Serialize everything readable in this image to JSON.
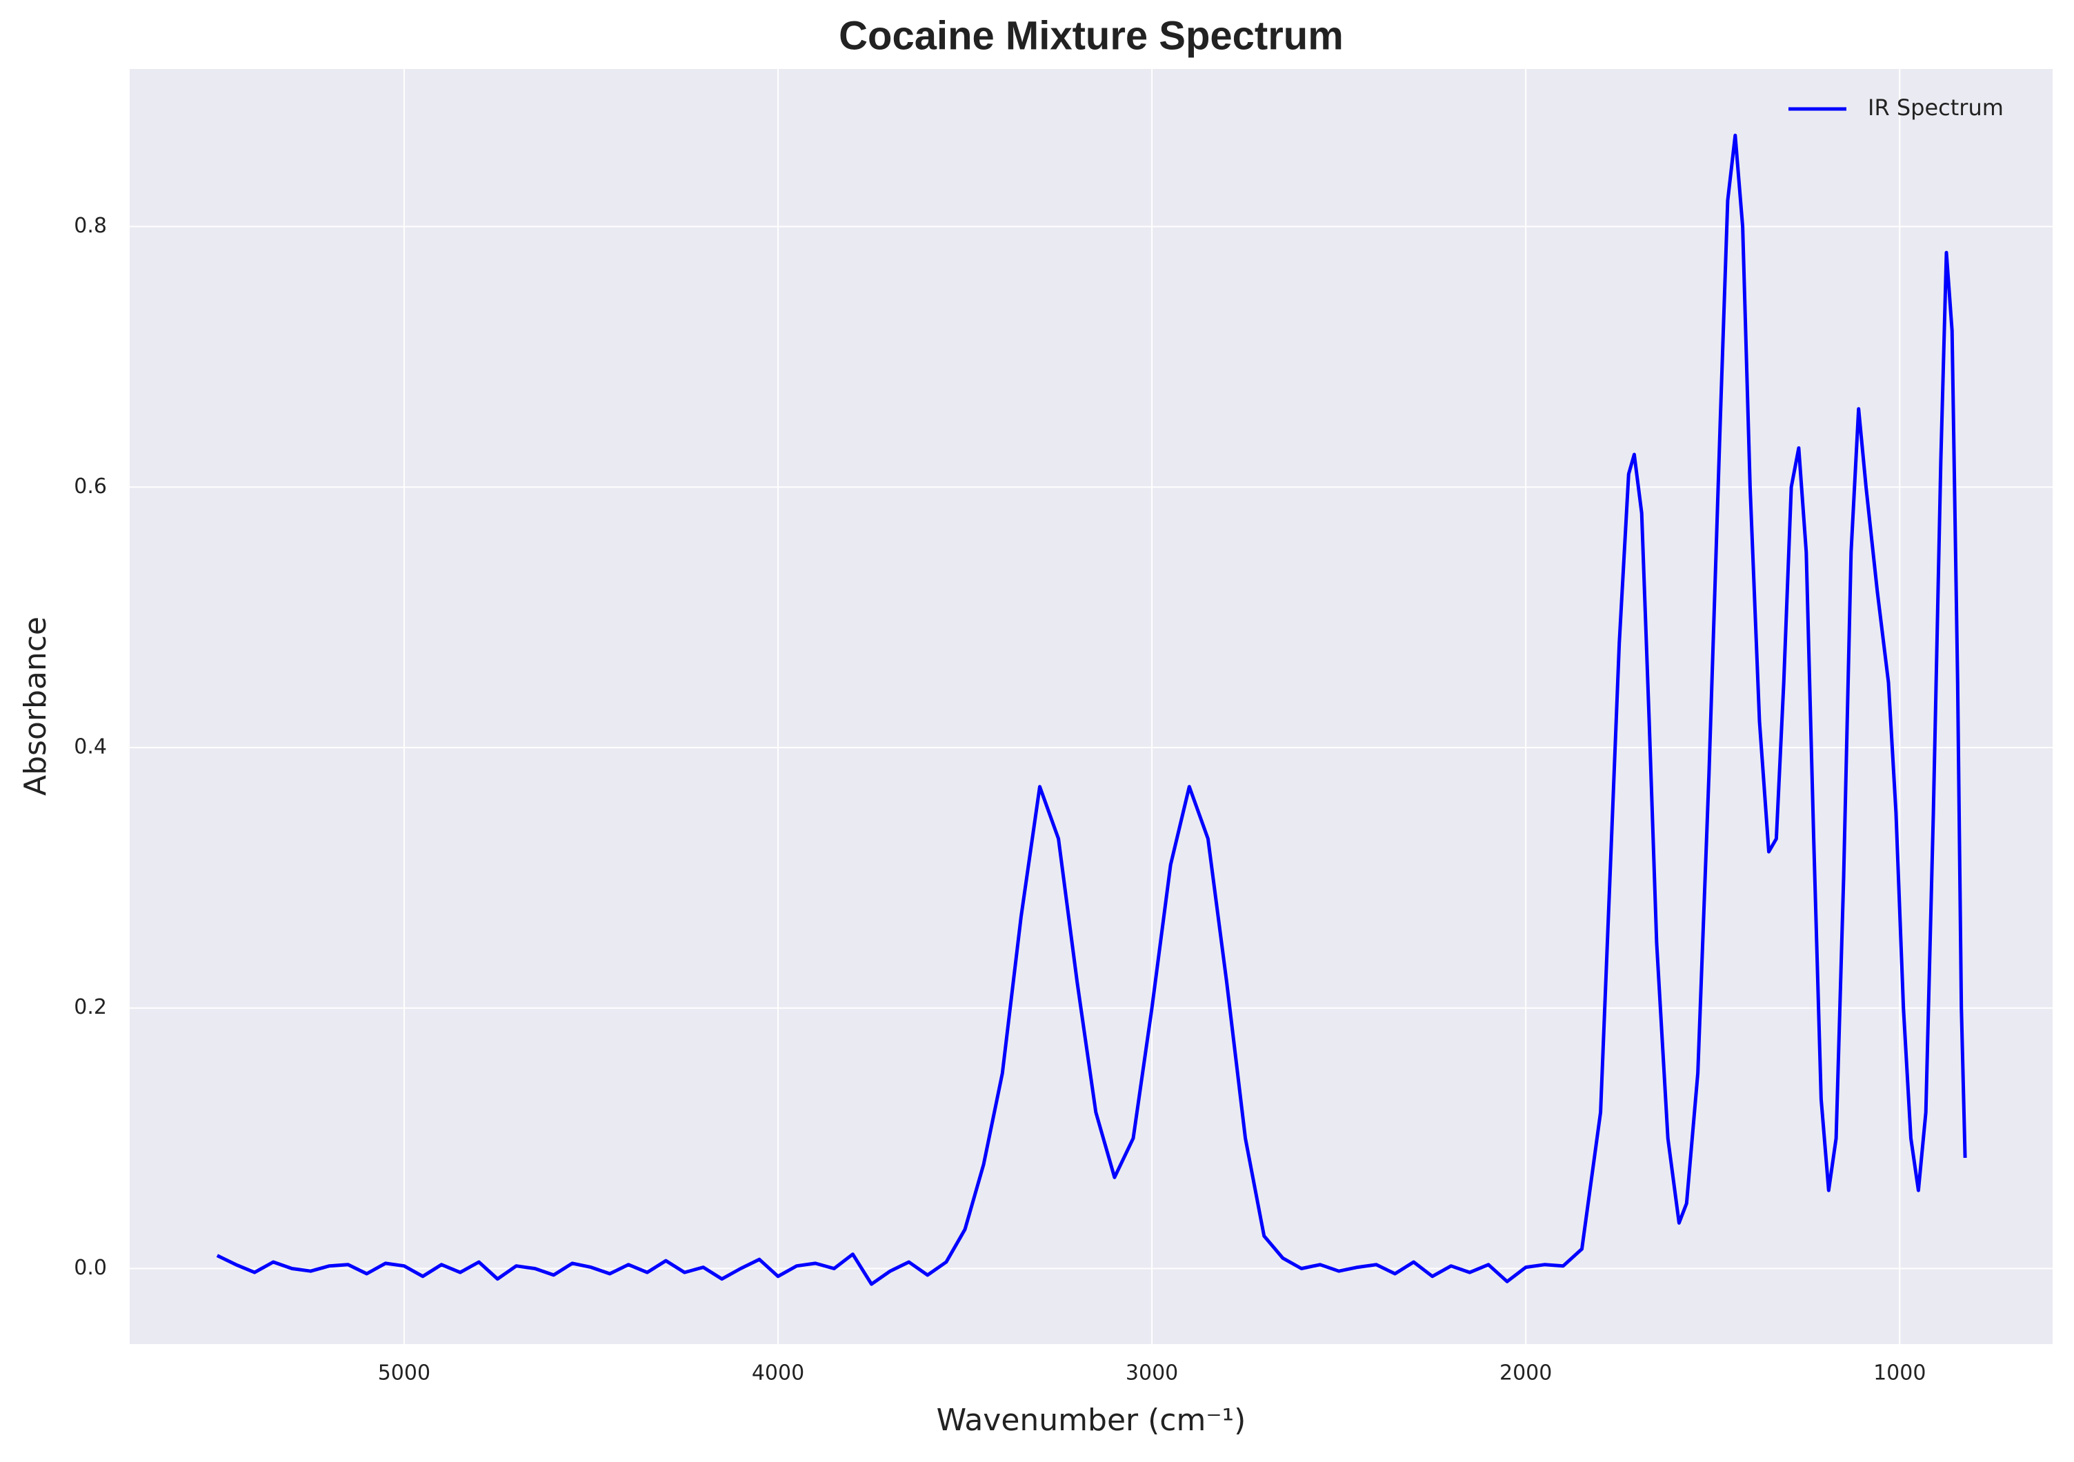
{
  "chart_data": {
    "type": "line",
    "title": "Cocaine Mixture Spectrum",
    "x_label": "Wavenumber (cm⁻¹)",
    "y_label": "Absorbance",
    "x": [
      5500,
      5450,
      5400,
      5350,
      5300,
      5250,
      5200,
      5150,
      5100,
      5050,
      5000,
      4950,
      4900,
      4850,
      4800,
      4750,
      4700,
      4650,
      4600,
      4550,
      4500,
      4450,
      4400,
      4350,
      4300,
      4250,
      4200,
      4150,
      4100,
      4050,
      4000,
      3950,
      3900,
      3850,
      3800,
      3750,
      3700,
      3650,
      3600,
      3550,
      3500,
      3450,
      3400,
      3350,
      3300,
      3250,
      3200,
      3150,
      3100,
      3050,
      3000,
      2950,
      2900,
      2850,
      2800,
      2750,
      2700,
      2650,
      2600,
      2550,
      2500,
      2450,
      2400,
      2350,
      2300,
      2250,
      2200,
      2150,
      2100,
      2050,
      2000,
      1950,
      1900,
      1850,
      1800,
      1775,
      1750,
      1725,
      1710,
      1690,
      1670,
      1650,
      1620,
      1590,
      1570,
      1540,
      1510,
      1480,
      1460,
      1440,
      1420,
      1400,
      1375,
      1350,
      1330,
      1310,
      1290,
      1270,
      1250,
      1230,
      1210,
      1190,
      1170,
      1150,
      1130,
      1110,
      1090,
      1060,
      1030,
      1010,
      990,
      970,
      950,
      930,
      910,
      890,
      875,
      860,
      845,
      835,
      825
    ],
    "series": [
      {
        "name": "IR Spectrum",
        "color": "#0000ff",
        "values": [
          0.01,
          0.003,
          -0.003,
          0.005,
          0.0,
          -0.002,
          0.002,
          0.003,
          -0.004,
          0.004,
          0.002,
          -0.006,
          0.003,
          -0.003,
          0.005,
          -0.008,
          0.002,
          0.0,
          -0.005,
          0.004,
          0.001,
          -0.004,
          0.003,
          -0.003,
          0.006,
          -0.003,
          0.001,
          -0.008,
          0.0,
          0.007,
          -0.006,
          0.002,
          0.004,
          0.0,
          0.011,
          -0.012,
          -0.002,
          0.005,
          -0.005,
          0.005,
          0.03,
          0.08,
          0.15,
          0.27,
          0.37,
          0.33,
          0.22,
          0.12,
          0.07,
          0.1,
          0.2,
          0.31,
          0.37,
          0.33,
          0.22,
          0.1,
          0.025,
          0.008,
          0.0,
          0.003,
          -0.002,
          0.001,
          0.003,
          -0.004,
          0.005,
          -0.006,
          0.002,
          -0.003,
          0.003,
          -0.01,
          0.001,
          0.003,
          0.002,
          0.015,
          0.12,
          0.3,
          0.48,
          0.61,
          0.625,
          0.58,
          0.42,
          0.25,
          0.1,
          0.035,
          0.05,
          0.15,
          0.38,
          0.65,
          0.82,
          0.87,
          0.8,
          0.6,
          0.42,
          0.32,
          0.33,
          0.45,
          0.6,
          0.63,
          0.55,
          0.33,
          0.13,
          0.06,
          0.1,
          0.3,
          0.55,
          0.66,
          0.6,
          0.52,
          0.45,
          0.35,
          0.2,
          0.1,
          0.06,
          0.12,
          0.35,
          0.62,
          0.78,
          0.72,
          0.45,
          0.2,
          0.085
        ]
      }
    ],
    "xlim": [
      5734,
      591
    ],
    "xticks": [
      5000,
      4000,
      3000,
      2000,
      1000
    ],
    "ylim": [
      -0.058,
      0.921
    ],
    "yticks": [
      {
        "value": 0,
        "label": "0.0"
      },
      0.2,
      0.4,
      0.6,
      0.8
    ],
    "grid": true,
    "legend": "upper right"
  }
}
